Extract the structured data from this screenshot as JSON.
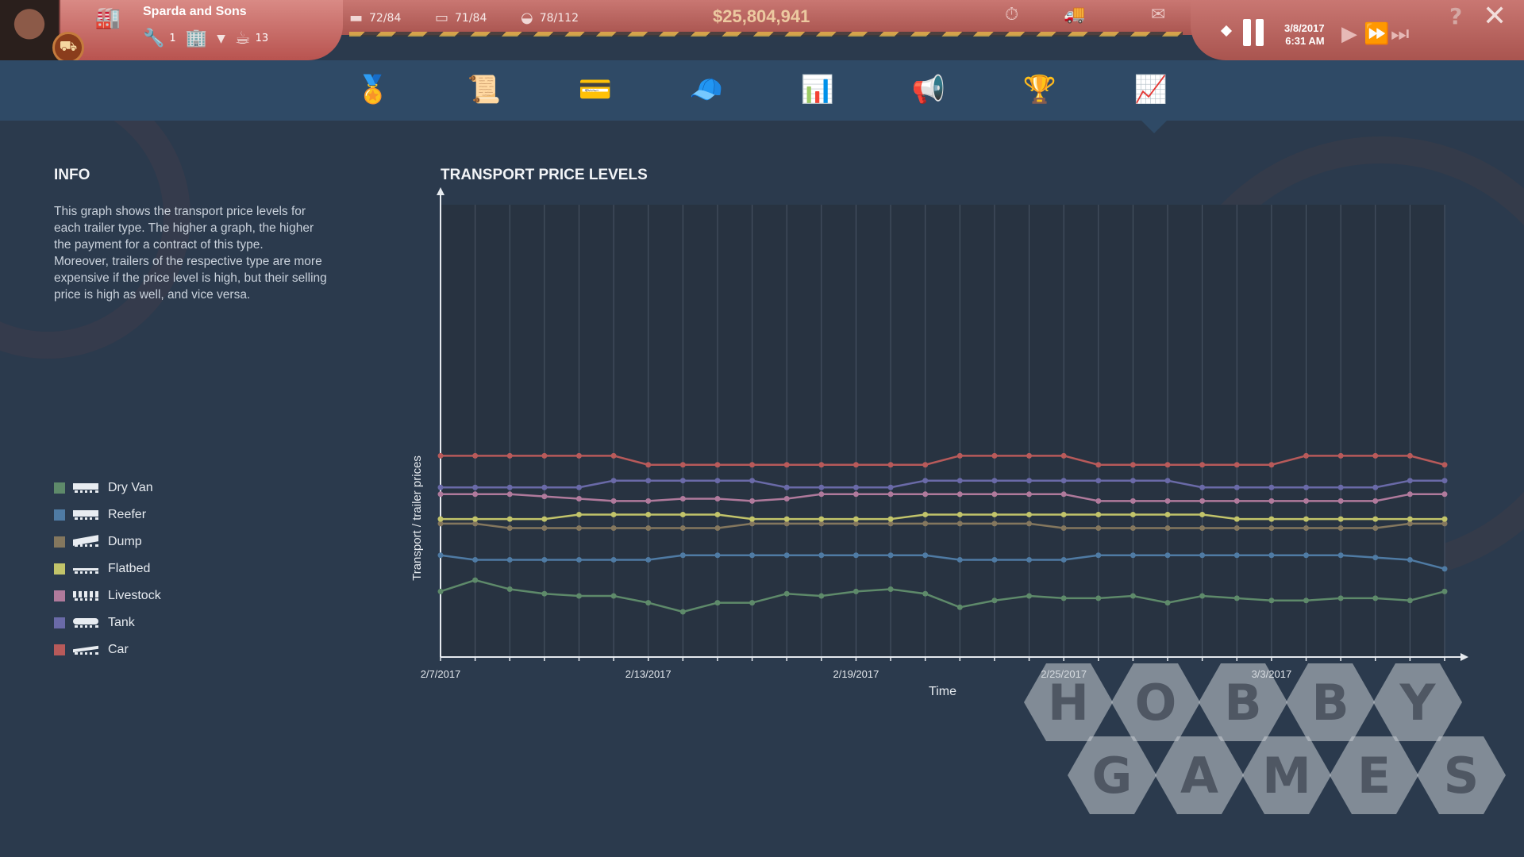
{
  "company": {
    "name": "Sparda and Sons",
    "level_count": "1",
    "fleet_count": "13"
  },
  "fleet": [
    {
      "icon": "truck-icon",
      "value": "72/84"
    },
    {
      "icon": "trailer-icon",
      "value": "71/84"
    },
    {
      "icon": "driver-icon",
      "value": "78/112"
    }
  ],
  "money": "$25,804,941",
  "datetime": {
    "date": "3/8/2017",
    "time": "6:31 AM"
  },
  "nav": [
    {
      "name": "nav-medal",
      "icon": "medal-icon",
      "glyph": "🏅"
    },
    {
      "name": "nav-certificate",
      "icon": "certificate-icon",
      "glyph": "📜"
    },
    {
      "name": "nav-card",
      "icon": "card-icon",
      "glyph": "💳"
    },
    {
      "name": "nav-cap",
      "icon": "cap-icon",
      "glyph": "🧢"
    },
    {
      "name": "nav-statistics",
      "icon": "bar-chart-icon",
      "glyph": "📊"
    },
    {
      "name": "nav-marketing",
      "icon": "megaphone-icon",
      "glyph": "📢"
    },
    {
      "name": "nav-ranking",
      "icon": "trophy-icon",
      "glyph": "🏆"
    },
    {
      "name": "nav-price-levels",
      "icon": "trend-chart-icon",
      "glyph": "📈"
    }
  ],
  "info": {
    "title": "INFO",
    "paragraph1": "This graph shows the transport price levels for each trailer type. The higher a graph, the higher the payment for a contract of this type.",
    "paragraph2": "Moreover, trailers of the respective type are more expensive if the price level is high, but their selling price is high as well, and vice versa."
  },
  "legend": [
    {
      "label": "Dry Van",
      "color": "#5e8a6a",
      "icon": "dry-van-icon"
    },
    {
      "label": "Reefer",
      "color": "#4f7ba4",
      "icon": "reefer-icon"
    },
    {
      "label": "Dump",
      "color": "#84775e",
      "icon": "dump-icon"
    },
    {
      "label": "Flatbed",
      "color": "#c2c46a",
      "icon": "flatbed-icon"
    },
    {
      "label": "Livestock",
      "color": "#b07a9c",
      "icon": "livestock-icon"
    },
    {
      "label": "Tank",
      "color": "#6a6aa8",
      "icon": "tank-icon"
    },
    {
      "label": "Car",
      "color": "#b85a5a",
      "icon": "car-icon"
    }
  ],
  "chart_data": {
    "type": "line",
    "title": "TRANSPORT PRICE LEVELS",
    "xlabel": "Time",
    "ylabel": "Transport / trailer prices",
    "x_tick_labels": [
      "2/7/2017",
      "2/13/2017",
      "2/19/2017",
      "2/25/2017",
      "3/3/2017"
    ],
    "x_dates": [
      "2/7/2017",
      "2/8/2017",
      "2/9/2017",
      "2/10/2017",
      "2/11/2017",
      "2/12/2017",
      "2/13/2017",
      "2/14/2017",
      "2/15/2017",
      "2/16/2017",
      "2/17/2017",
      "2/18/2017",
      "2/19/2017",
      "2/20/2017",
      "2/21/2017",
      "2/22/2017",
      "2/23/2017",
      "2/24/2017",
      "2/25/2017",
      "2/26/2017",
      "2/27/2017",
      "2/28/2017",
      "3/1/2017",
      "3/2/2017",
      "3/3/2017",
      "3/4/2017",
      "3/5/2017",
      "3/6/2017",
      "3/7/2017",
      "3/8/2017"
    ],
    "ylim": [
      0,
      100
    ],
    "grid": true,
    "series": [
      {
        "name": "Dry Van",
        "color": "#5e8a6a",
        "values": [
          14.5,
          17,
          15,
          14,
          13.5,
          13.5,
          12,
          10,
          12,
          12,
          14,
          13.5,
          14.5,
          15,
          14,
          11,
          12.5,
          13.5,
          13,
          13,
          13.5,
          12,
          13.5,
          13,
          12.5,
          12.5,
          13,
          13,
          12.5,
          14.5
        ]
      },
      {
        "name": "Reefer",
        "color": "#4f7ba4",
        "values": [
          22.5,
          21.5,
          21.5,
          21.5,
          21.5,
          21.5,
          21.5,
          22.5,
          22.5,
          22.5,
          22.5,
          22.5,
          22.5,
          22.5,
          22.5,
          21.5,
          21.5,
          21.5,
          21.5,
          22.5,
          22.5,
          22.5,
          22.5,
          22.5,
          22.5,
          22.5,
          22.5,
          22,
          21.5,
          19.5
        ]
      },
      {
        "name": "Dump",
        "color": "#84775e",
        "values": [
          29.5,
          29.5,
          28.5,
          28.5,
          28.5,
          28.5,
          28.5,
          28.5,
          28.5,
          29.5,
          29.5,
          29.5,
          29.5,
          29.5,
          29.5,
          29.5,
          29.5,
          29.5,
          28.5,
          28.5,
          28.5,
          28.5,
          28.5,
          28.5,
          28.5,
          28.5,
          28.5,
          28.5,
          29.5,
          29.5
        ]
      },
      {
        "name": "Flatbed",
        "color": "#c2c46a",
        "values": [
          30.5,
          30.5,
          30.5,
          30.5,
          31.5,
          31.5,
          31.5,
          31.5,
          31.5,
          30.5,
          30.5,
          30.5,
          30.5,
          30.5,
          31.5,
          31.5,
          31.5,
          31.5,
          31.5,
          31.5,
          31.5,
          31.5,
          31.5,
          30.5,
          30.5,
          30.5,
          30.5,
          30.5,
          30.5,
          30.5
        ]
      },
      {
        "name": "Livestock",
        "color": "#b07a9c",
        "values": [
          36,
          36,
          36,
          35.5,
          35,
          34.5,
          34.5,
          35,
          35,
          34.5,
          35,
          36,
          36,
          36,
          36,
          36,
          36,
          36,
          36,
          34.5,
          34.5,
          34.5,
          34.5,
          34.5,
          34.5,
          34.5,
          34.5,
          34.5,
          36,
          36
        ]
      },
      {
        "name": "Tank",
        "color": "#6a6aa8",
        "values": [
          37.5,
          37.5,
          37.5,
          37.5,
          37.5,
          39,
          39,
          39,
          39,
          39,
          37.5,
          37.5,
          37.5,
          37.5,
          39,
          39,
          39,
          39,
          39,
          39,
          39,
          39,
          37.5,
          37.5,
          37.5,
          37.5,
          37.5,
          37.5,
          39,
          39
        ]
      },
      {
        "name": "Car",
        "color": "#b85a5a",
        "values": [
          44.5,
          44.5,
          44.5,
          44.5,
          44.5,
          44.5,
          42.5,
          42.5,
          42.5,
          42.5,
          42.5,
          42.5,
          42.5,
          42.5,
          42.5,
          44.5,
          44.5,
          44.5,
          44.5,
          42.5,
          42.5,
          42.5,
          42.5,
          42.5,
          42.5,
          44.5,
          44.5,
          44.5,
          44.5,
          42.5
        ]
      }
    ]
  },
  "watermark": {
    "row1": [
      "H",
      "O",
      "B",
      "B",
      "Y"
    ],
    "row2": [
      "G",
      "A",
      "M",
      "E",
      "S"
    ]
  }
}
